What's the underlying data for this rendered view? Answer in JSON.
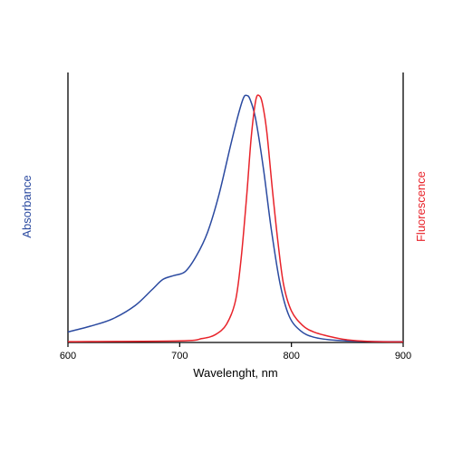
{
  "chart_data": {
    "type": "line",
    "xlabel": "Wavelenght, nm",
    "ylabel_left": "Absorbance",
    "ylabel_right": "Fluorescence",
    "xlim": [
      600,
      900
    ],
    "ylim": [
      0,
      1.0
    ],
    "x_ticks": [
      "600",
      "700",
      "800",
      "900"
    ],
    "colors": {
      "absorbance": "#2b4aa0",
      "fluorescence": "#e8232a",
      "axes": "#000000"
    },
    "series": [
      {
        "axis": "left",
        "color": "#2b4aa0",
        "points": [
          [
            600,
            0.04
          ],
          [
            620,
            0.062
          ],
          [
            640,
            0.09
          ],
          [
            660,
            0.14
          ],
          [
            675,
            0.2
          ],
          [
            685,
            0.24
          ],
          [
            695,
            0.255
          ],
          [
            705,
            0.27
          ],
          [
            715,
            0.33
          ],
          [
            725,
            0.42
          ],
          [
            735,
            0.56
          ],
          [
            745,
            0.74
          ],
          [
            752,
            0.86
          ],
          [
            757,
            0.93
          ],
          [
            760,
            0.94
          ],
          [
            763,
            0.925
          ],
          [
            768,
            0.85
          ],
          [
            775,
            0.66
          ],
          [
            782,
            0.43
          ],
          [
            790,
            0.22
          ],
          [
            798,
            0.1
          ],
          [
            808,
            0.045
          ],
          [
            820,
            0.02
          ],
          [
            840,
            0.008
          ],
          [
            870,
            0.004
          ],
          [
            900,
            0.003
          ]
        ]
      },
      {
        "axis": "right",
        "color": "#e8232a",
        "points": [
          [
            600,
            0.003
          ],
          [
            700,
            0.006
          ],
          [
            720,
            0.015
          ],
          [
            732,
            0.03
          ],
          [
            742,
            0.07
          ],
          [
            750,
            0.16
          ],
          [
            755,
            0.32
          ],
          [
            760,
            0.56
          ],
          [
            764,
            0.78
          ],
          [
            768,
            0.92
          ],
          [
            771,
            0.94
          ],
          [
            774,
            0.91
          ],
          [
            778,
            0.8
          ],
          [
            783,
            0.58
          ],
          [
            788,
            0.38
          ],
          [
            793,
            0.22
          ],
          [
            800,
            0.12
          ],
          [
            810,
            0.065
          ],
          [
            820,
            0.04
          ],
          [
            835,
            0.022
          ],
          [
            850,
            0.01
          ],
          [
            870,
            0.004
          ],
          [
            900,
            0.002
          ]
        ]
      }
    ]
  }
}
